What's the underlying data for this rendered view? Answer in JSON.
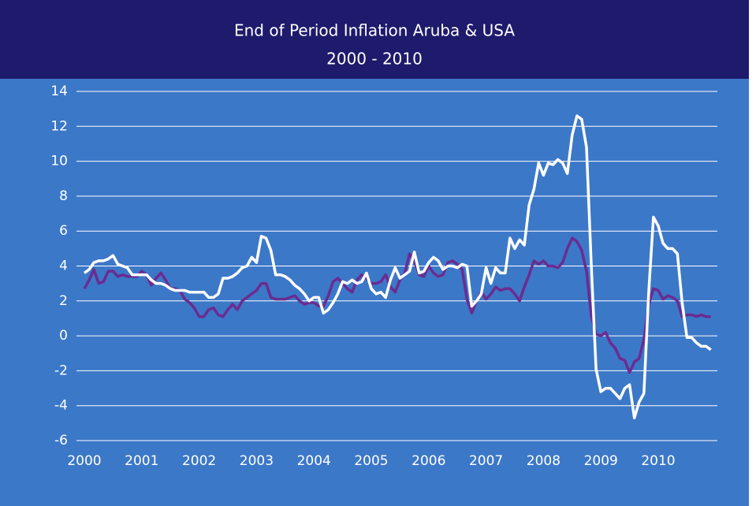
{
  "chart_data": {
    "type": "line",
    "title": "End of Period Inflation Aruba & USA",
    "subtitle": "2000 - 2010",
    "categories": [
      "2000",
      null,
      null,
      null,
      null,
      null,
      null,
      null,
      null,
      null,
      null,
      null,
      "2001",
      null,
      null,
      null,
      null,
      null,
      null,
      null,
      null,
      null,
      null,
      null,
      "2002",
      null,
      null,
      null,
      null,
      null,
      null,
      null,
      null,
      null,
      null,
      null,
      "2003",
      null,
      null,
      null,
      null,
      null,
      null,
      null,
      null,
      null,
      null,
      null,
      "2004",
      null,
      null,
      null,
      null,
      null,
      null,
      null,
      null,
      null,
      null,
      null,
      "2005",
      null,
      null,
      null,
      null,
      null,
      null,
      null,
      null,
      null,
      null,
      null,
      "2006",
      null,
      null,
      null,
      null,
      null,
      null,
      null,
      null,
      null,
      null,
      null,
      "2007",
      null,
      null,
      null,
      null,
      null,
      null,
      null,
      null,
      null,
      null,
      null,
      "2008",
      null,
      null,
      null,
      null,
      null,
      null,
      null,
      null,
      null,
      null,
      null,
      "2009",
      null,
      null,
      null,
      null,
      null,
      null,
      null,
      null,
      null,
      null,
      null,
      "2010",
      null,
      null,
      null,
      null,
      null,
      null,
      null,
      null,
      null,
      null,
      null
    ],
    "series": [
      {
        "color": "#ffffff",
        "values": [
          3.6,
          3.8,
          4.2,
          4.3,
          4.3,
          4.4,
          4.6,
          4.1,
          4.0,
          3.9,
          3.5,
          3.5,
          3.5,
          3.5,
          3.2,
          3.0,
          3.0,
          2.9,
          2.7,
          2.6,
          2.6,
          2.6,
          2.5,
          2.5,
          2.5,
          2.5,
          2.2,
          2.2,
          2.4,
          3.3,
          3.3,
          3.4,
          3.6,
          3.9,
          4.0,
          4.5,
          4.2,
          5.7,
          5.6,
          4.9,
          3.5,
          3.5,
          3.4,
          3.2,
          2.9,
          2.7,
          2.4,
          2.0,
          2.2,
          2.2,
          1.3,
          1.5,
          1.9,
          2.4,
          3.1,
          3.0,
          3.2,
          3.0,
          3.1,
          3.6,
          2.7,
          2.4,
          2.5,
          2.2,
          3.2,
          3.9,
          3.3,
          3.5,
          3.7,
          4.8,
          3.6,
          3.7,
          4.2,
          4.5,
          4.3,
          3.8,
          4.0,
          4.0,
          3.9,
          4.1,
          4.0,
          1.7,
          2.0,
          2.4,
          3.9,
          3.0,
          3.9,
          3.6,
          3.6,
          5.6,
          5.0,
          5.5,
          5.2,
          7.5,
          8.4,
          9.9,
          9.2,
          9.9,
          9.8,
          10.1,
          9.9,
          9.3,
          11.5,
          12.6,
          12.4,
          10.8,
          4.0,
          -1.9,
          -3.2,
          -3.0,
          -3.0,
          -3.3,
          -3.6,
          -3.0,
          -2.8,
          -4.7,
          -3.8,
          -3.3,
          2.5,
          6.8,
          6.3,
          5.3,
          5.0,
          5.0,
          4.7,
          1.9,
          -0.1,
          -0.1,
          -0.4,
          -0.6,
          -0.6,
          -0.8
        ]
      },
      {
        "color": "#6a2c91",
        "values": [
          2.7,
          3.2,
          3.8,
          3.0,
          3.1,
          3.7,
          3.7,
          3.4,
          3.5,
          3.4,
          3.4,
          3.4,
          3.7,
          3.5,
          2.9,
          3.3,
          3.6,
          3.2,
          2.7,
          2.7,
          2.6,
          2.1,
          1.9,
          1.6,
          1.1,
          1.1,
          1.5,
          1.6,
          1.2,
          1.1,
          1.5,
          1.8,
          1.5,
          2.0,
          2.2,
          2.4,
          2.6,
          3.0,
          3.0,
          2.2,
          2.1,
          2.1,
          2.1,
          2.2,
          2.3,
          2.0,
          1.8,
          1.9,
          1.9,
          1.7,
          1.7,
          2.3,
          3.1,
          3.3,
          3.0,
          2.7,
          2.5,
          3.2,
          3.5,
          3.3,
          3.0,
          3.0,
          3.1,
          3.5,
          2.8,
          2.5,
          3.2,
          3.6,
          4.7,
          4.3,
          3.5,
          3.4,
          4.0,
          3.6,
          3.4,
          3.5,
          4.2,
          4.3,
          4.1,
          3.8,
          2.1,
          1.3,
          2.0,
          2.5,
          2.1,
          2.4,
          2.8,
          2.6,
          2.7,
          2.7,
          2.4,
          2.0,
          2.8,
          3.5,
          4.3,
          4.1,
          4.3,
          4.0,
          4.0,
          3.9,
          4.2,
          5.0,
          5.6,
          5.4,
          4.9,
          3.7,
          1.1,
          0.1,
          0.0,
          0.2,
          -0.4,
          -0.7,
          -1.3,
          -1.4,
          -2.1,
          -1.5,
          -1.3,
          -0.2,
          1.8,
          2.7,
          2.6,
          2.1,
          2.3,
          2.2,
          2.0,
          1.1,
          1.2,
          1.2,
          1.1,
          1.2,
          1.1,
          1.1
        ]
      }
    ],
    "ylim": [
      -6,
      14
    ],
    "yticks": [
      -6,
      -4,
      -2,
      0,
      2,
      4,
      6,
      8,
      10,
      12,
      14
    ],
    "grid": true
  }
}
